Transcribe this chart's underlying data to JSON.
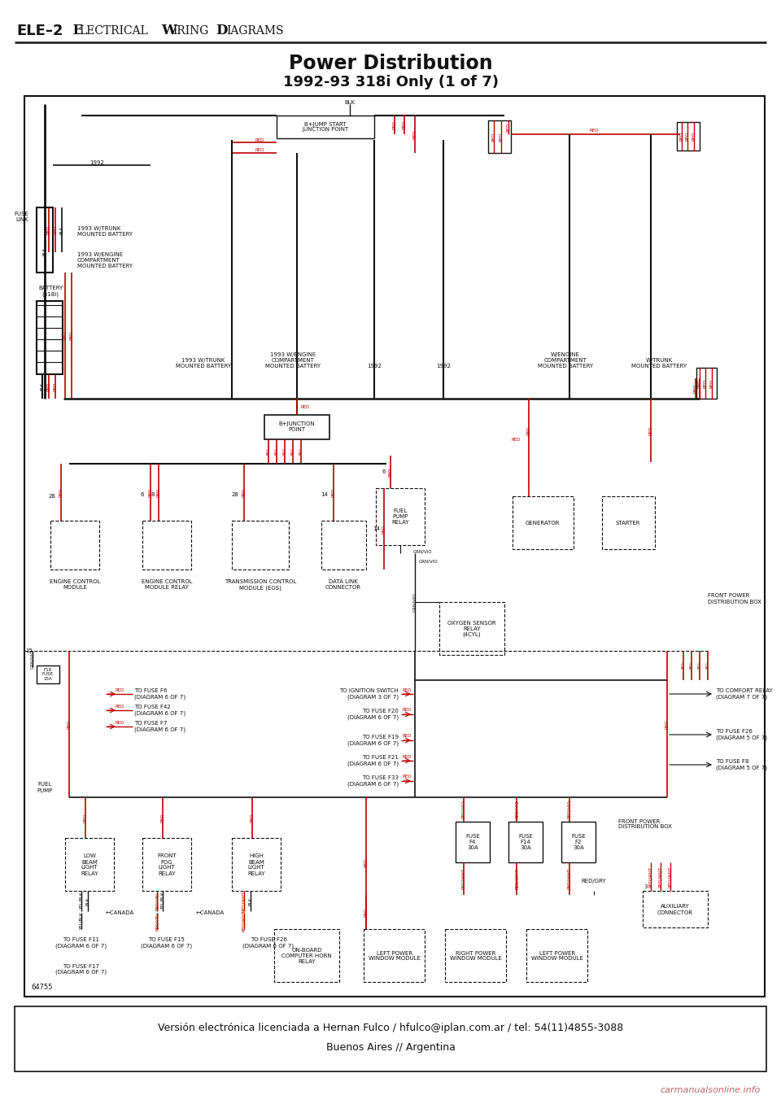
{
  "page_bg": "#ffffff",
  "border_color": "#000000",
  "header_title_bold": "ELE–2",
  "header_title_rest": "  ELECTRICAL WIRING DIAGRAMS",
  "chart_title_line1": "Power Distribution",
  "chart_title_line2": "1992-93 318i Only (1 of 7)",
  "footer_line1": "Versión electrónica licenciada a Hernan Fulco / hfulco@iplan.com.ar / tel: 54(11)4855-3088",
  "footer_line2": "Buenos Aires // Argentina",
  "watermark": "carmanualsonline.info",
  "diagram_number": "64755",
  "black": "#111111",
  "red": "#bb0000",
  "gray": "#888888"
}
